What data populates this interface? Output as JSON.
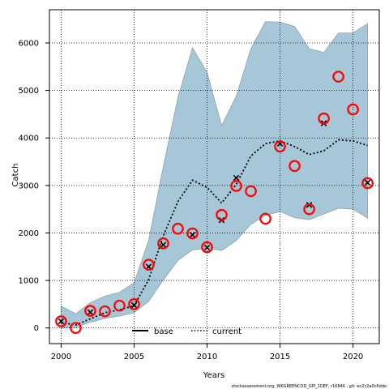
{
  "chart_data": {
    "type": "line",
    "xlabel": "Years",
    "ylabel": "Catch",
    "xlim": [
      1999.2,
      2021.8
    ],
    "ylim": [
      -330,
      6700
    ],
    "x_ticks": [
      2000,
      2005,
      2010,
      2015,
      2020
    ],
    "y_ticks": [
      0,
      1000,
      2000,
      3000,
      4000,
      5000,
      6000
    ],
    "grid": true,
    "legend_placement": "bottom-center",
    "legend": [
      {
        "name": "base",
        "style": "solid",
        "color": "#000000"
      },
      {
        "name": "current",
        "style": "dotted",
        "color": "#000000"
      }
    ],
    "band": {
      "name": "uncertainty-band",
      "color": "#a6c7d8",
      "x": [
        2000,
        2001,
        2002,
        2003,
        2004,
        2005,
        2006,
        2007,
        2008,
        2009,
        2010,
        2011,
        2012,
        2013,
        2014,
        2015,
        2016,
        2017,
        2018,
        2019,
        2020,
        2021
      ],
      "upper": [
        460,
        300,
        530,
        670,
        750,
        950,
        1850,
        3400,
        4850,
        5900,
        5380,
        4260,
        4880,
        5880,
        6450,
        6440,
        6350,
        5880,
        5800,
        6210,
        6210,
        6410
      ],
      "lower": [
        0,
        10,
        120,
        200,
        250,
        320,
        560,
        1010,
        1420,
        1640,
        1680,
        1630,
        1840,
        2180,
        2370,
        2450,
        2320,
        2280,
        2400,
        2520,
        2500,
        2310
      ]
    },
    "series": [
      {
        "name": "current",
        "style": "dotted",
        "x": [
          2000,
          2001,
          2002,
          2003,
          2004,
          2005,
          2006,
          2007,
          2008,
          2009,
          2010,
          2011,
          2012,
          2013,
          2014,
          2015,
          2016,
          2017,
          2018,
          2019,
          2020,
          2021
        ],
        "y": [
          120,
          60,
          190,
          320,
          380,
          470,
          1020,
          1940,
          2660,
          3110,
          2960,
          2630,
          3020,
          3620,
          3880,
          3940,
          3820,
          3650,
          3730,
          3960,
          3940,
          3840
        ]
      }
    ],
    "observed": {
      "name": "observed-catch",
      "marker": "circle",
      "color": "#ff0000",
      "x": [
        2000,
        2001,
        2002,
        2003,
        2004,
        2005,
        2006,
        2007,
        2008,
        2009,
        2010,
        2011,
        2012,
        2013,
        2014,
        2015,
        2016,
        2017,
        2018,
        2019,
        2020,
        2021
      ],
      "y": [
        140,
        0,
        360,
        350,
        470,
        500,
        1330,
        1780,
        2090,
        1990,
        1700,
        2380,
        2990,
        2880,
        2300,
        3820,
        3410,
        2500,
        4410,
        5290,
        4600,
        3050
      ]
    },
    "predicted": {
      "name": "predicted-catch",
      "marker": "x",
      "color": "#000000",
      "x": [
        2000,
        2002,
        2005,
        2006,
        2007,
        2009,
        2010,
        2011,
        2012,
        2015,
        2017,
        2018,
        2021
      ],
      "y": [
        140,
        330,
        480,
        1290,
        1750,
        1960,
        1690,
        2270,
        3160,
        3880,
        2590,
        4310,
        3060
      ]
    },
    "footer": "stockassessment.org, WKGREENCOD_GPI_1DEF, r16846 , git: ec2c2a0c6dde"
  }
}
